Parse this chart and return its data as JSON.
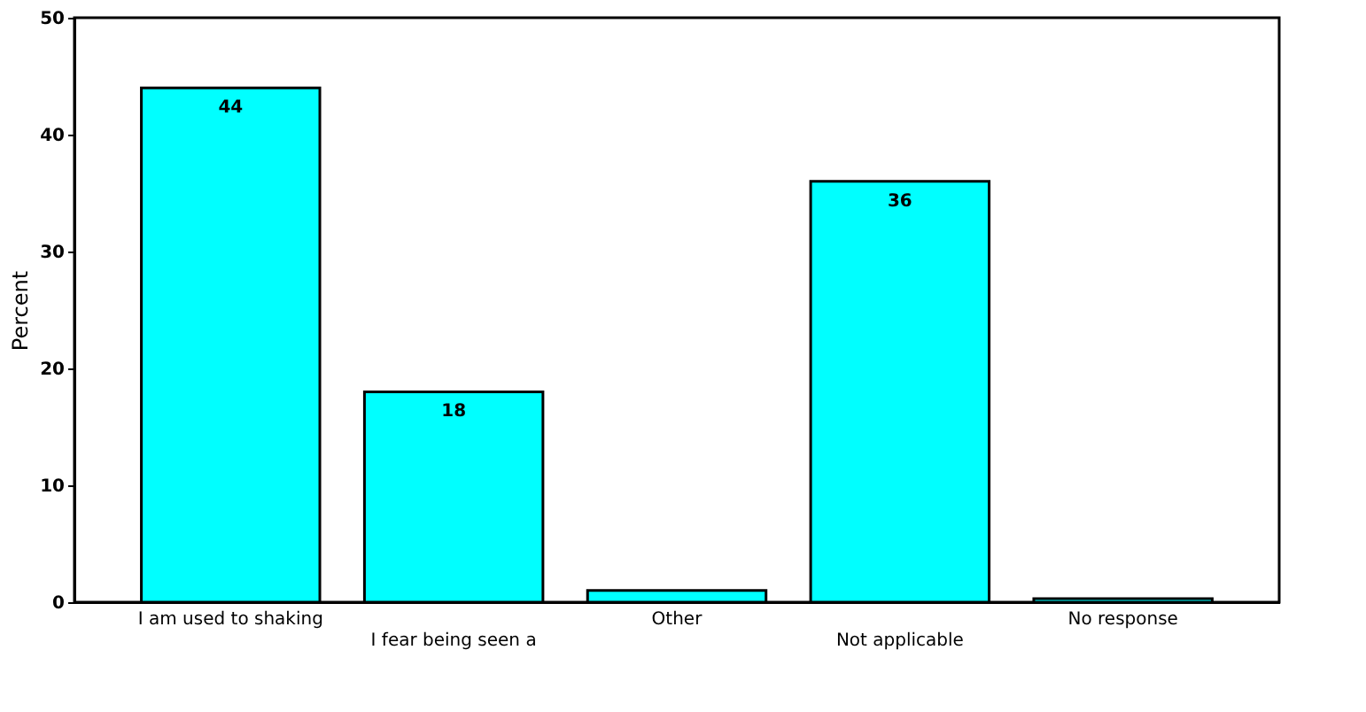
{
  "chart_data": {
    "type": "bar",
    "ylabel": "Percent",
    "categories": [
      "I am used to shaking",
      "I fear being seen a",
      "Other",
      "Not applicable",
      "No response"
    ],
    "values": [
      44,
      18,
      1.0,
      36,
      0.3
    ],
    "value_labels": [
      "44",
      "18",
      null,
      "36",
      null
    ],
    "color": "#00ffff",
    "ylim": [
      0,
      50
    ],
    "yticks": [
      0,
      10,
      20,
      30,
      40,
      50
    ],
    "grid": false
  }
}
